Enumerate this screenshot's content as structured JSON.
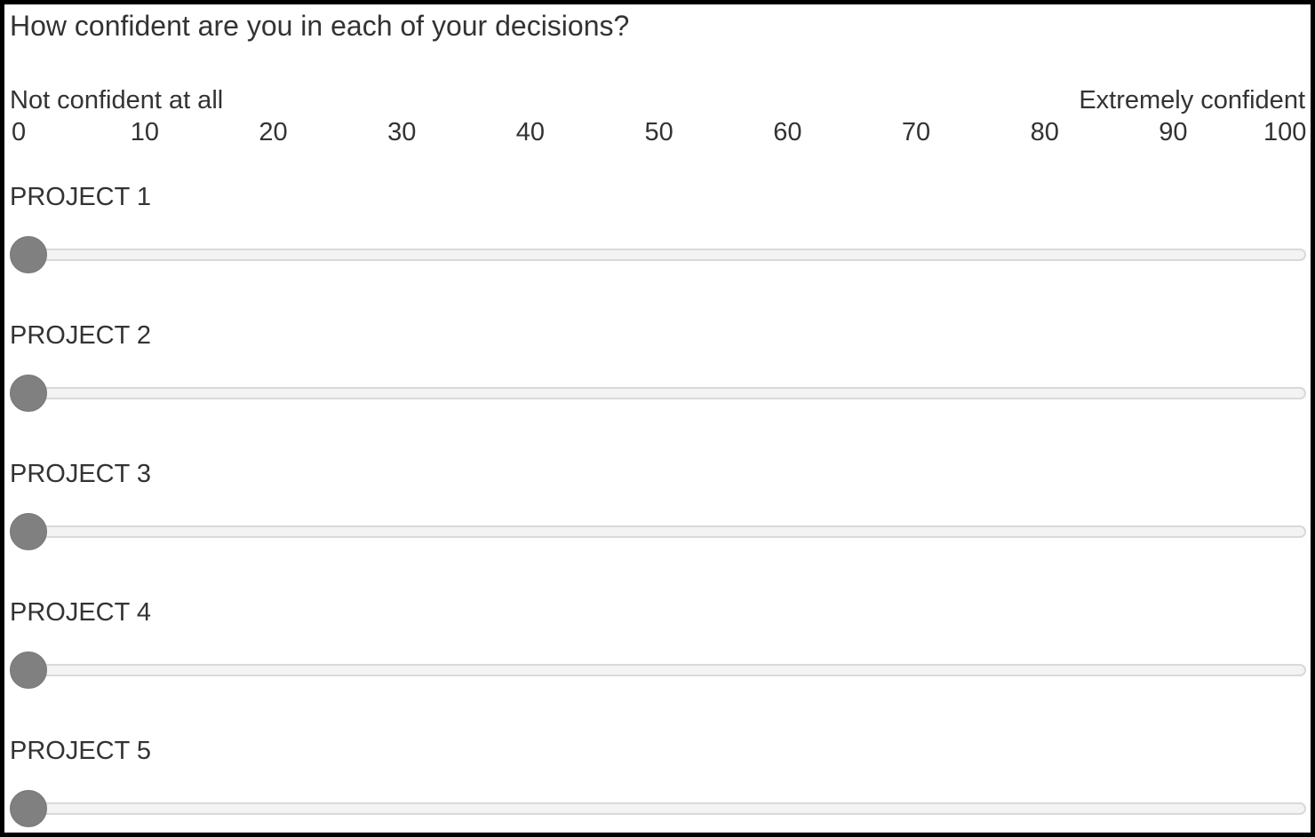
{
  "question": "How confident are you in each of your decisions?",
  "scale": {
    "min_label": "Not confident at all",
    "max_label": "Extremely confident",
    "min": 0,
    "max": 100,
    "ticks": [
      "0",
      "10",
      "20",
      "30",
      "40",
      "50",
      "60",
      "70",
      "80",
      "90",
      "100"
    ]
  },
  "sliders": [
    {
      "label": "PROJECT 1",
      "value": 0
    },
    {
      "label": "PROJECT 2",
      "value": 0
    },
    {
      "label": "PROJECT 3",
      "value": 0
    },
    {
      "label": "PROJECT 4",
      "value": 0
    },
    {
      "label": "PROJECT 5",
      "value": 0
    }
  ],
  "colors": {
    "text": "#333333",
    "knob": "#808080",
    "track": "#f3f3f3",
    "track_border": "#d9d9d9",
    "frame": "#000000"
  }
}
